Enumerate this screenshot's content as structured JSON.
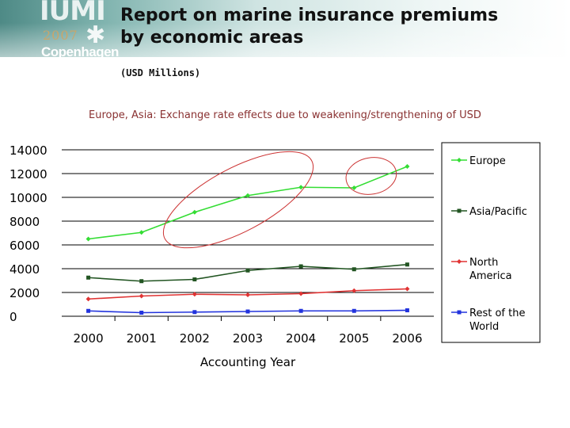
{
  "slide": {
    "title_line1": "Report on marine insurance premiums",
    "title_line2": "by economic areas",
    "subtitle": "(USD Millions)",
    "chart_heading": "Europe, Asia: Exchange rate effects due to weakening/strengthening of USD"
  },
  "logo": {
    "word": "IUMI",
    "year": "2007",
    "city": "Copenhagen"
  },
  "chart_data": {
    "type": "line",
    "title": "Europe, Asia: Exchange rate effects due to weakening/strengthening of USD",
    "xlabel": "Accounting Year",
    "ylabel": "",
    "x": [
      "2000",
      "2001",
      "2002",
      "2003",
      "2004",
      "2005",
      "2006"
    ],
    "ylim": [
      0,
      14000
    ],
    "yticks": [
      "0",
      "2000",
      "4000",
      "6000",
      "8000",
      "10000",
      "12000",
      "14000"
    ],
    "grid": "horizontal",
    "legend_position": "right",
    "series": [
      {
        "name": "Europe",
        "color": "#33dd33",
        "marker": "diamond",
        "values": [
          6500,
          7050,
          8750,
          10150,
          10850,
          10800,
          12600
        ]
      },
      {
        "name": "Asia/Pacific",
        "color": "#225522",
        "marker": "square",
        "values": [
          3250,
          2950,
          3100,
          3850,
          4200,
          3950,
          4350
        ]
      },
      {
        "name": "North America",
        "color": "#e03333",
        "marker": "diamond",
        "values": [
          1450,
          1700,
          1850,
          1800,
          1900,
          2150,
          2300
        ]
      },
      {
        "name": "Rest of the World",
        "color": "#2233dd",
        "marker": "square",
        "values": [
          450,
          300,
          350,
          400,
          450,
          450,
          500
        ]
      }
    ],
    "annotations": [
      {
        "type": "ellipse",
        "color": "#cc3333",
        "note": "Europe 2002-2004"
      },
      {
        "type": "ellipse",
        "color": "#cc3333",
        "note": "Europe 2005-2006"
      }
    ]
  }
}
